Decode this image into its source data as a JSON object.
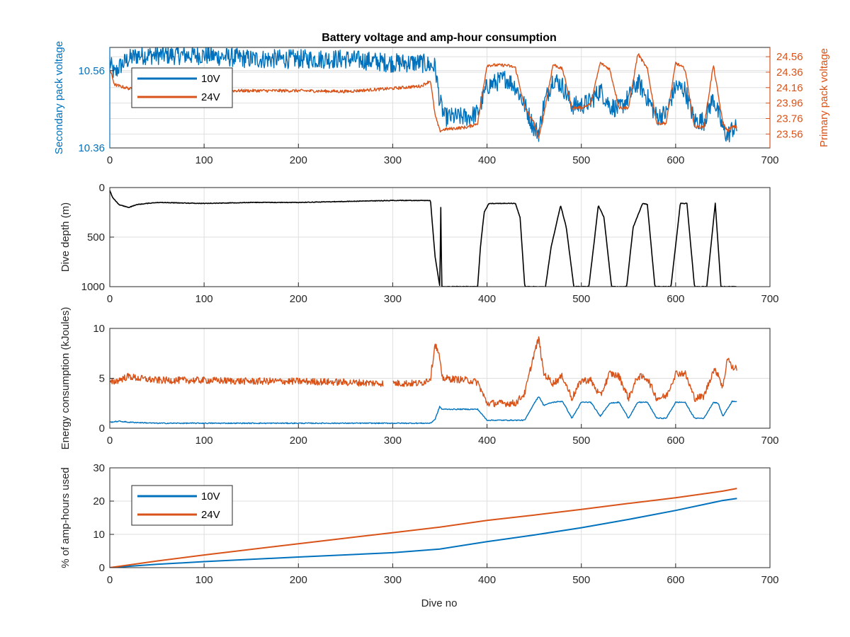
{
  "figure": {
    "title": "Battery voltage and amp-hour consumption",
    "xlabel": "Dive no",
    "colors": {
      "blue": "#0072BD",
      "orange": "#D95319",
      "black": "#000000",
      "grid": "#DFDFDF",
      "axis": "#262626"
    }
  },
  "chart_data": [
    {
      "type": "line",
      "panel": "voltage",
      "title": "Battery voltage and amp-hour consumption",
      "xlabel": "",
      "ylabel_left": "Secondary pack voltage",
      "ylabel_right": "Primary pack voltage",
      "xlim": [
        0,
        700
      ],
      "ylim_left": [
        10.36,
        10.62
      ],
      "ylim_right": [
        23.38,
        24.68
      ],
      "x_ticks": [
        0,
        100,
        200,
        300,
        400,
        500,
        600,
        700
      ],
      "y_ticks_left": [
        "10.36",
        "10.56"
      ],
      "y_ticks_right": [
        "23.56",
        "23.76",
        "23.96",
        "24.16",
        "24.36",
        "24.56"
      ],
      "legend": {
        "position": "top-left",
        "entries": [
          "10V",
          "24V"
        ]
      },
      "grid": true,
      "series": [
        {
          "name": "10V",
          "axis": "left",
          "color": "#0072BD",
          "noise": 0.025,
          "x": [
            0,
            5,
            10,
            20,
            30,
            50,
            100,
            150,
            200,
            250,
            300,
            330,
            345,
            350,
            355,
            380,
            390,
            400,
            420,
            430,
            440,
            450,
            455,
            460,
            470,
            480,
            490,
            500,
            510,
            520,
            530,
            540,
            550,
            560,
            570,
            580,
            590,
            600,
            610,
            620,
            630,
            640,
            650,
            655,
            660,
            665
          ],
          "y": [
            10.58,
            10.55,
            10.57,
            10.59,
            10.6,
            10.6,
            10.6,
            10.59,
            10.59,
            10.59,
            10.58,
            10.58,
            10.57,
            10.48,
            10.44,
            10.44,
            10.45,
            10.52,
            10.54,
            10.52,
            10.47,
            10.41,
            10.4,
            10.47,
            10.54,
            10.52,
            10.47,
            10.47,
            10.48,
            10.51,
            10.47,
            10.46,
            10.49,
            10.53,
            10.49,
            10.44,
            10.45,
            10.52,
            10.51,
            10.43,
            10.43,
            10.49,
            10.41,
            10.39,
            10.41,
            10.41
          ]
        },
        {
          "name": "24V",
          "axis": "right",
          "color": "#D95319",
          "noise": 0.02,
          "x": [
            0,
            5,
            10,
            20,
            30,
            50,
            100,
            150,
            200,
            250,
            300,
            330,
            340,
            345,
            350,
            355,
            380,
            390,
            400,
            420,
            430,
            440,
            450,
            455,
            460,
            470,
            480,
            490,
            500,
            510,
            520,
            530,
            540,
            550,
            560,
            570,
            580,
            590,
            600,
            610,
            620,
            630,
            640,
            650,
            655,
            660,
            665
          ],
          "y": [
            24.4,
            24.2,
            24.18,
            24.15,
            24.12,
            24.12,
            24.12,
            24.12,
            24.12,
            24.11,
            24.15,
            24.18,
            24.25,
            23.8,
            23.6,
            23.62,
            23.65,
            23.7,
            24.45,
            24.45,
            24.42,
            23.9,
            23.7,
            23.5,
            23.8,
            24.46,
            24.4,
            23.9,
            23.9,
            23.95,
            24.48,
            24.4,
            23.9,
            23.9,
            24.6,
            24.4,
            23.7,
            23.7,
            24.48,
            24.4,
            23.65,
            23.65,
            24.45,
            23.7,
            23.6,
            23.65,
            23.65
          ]
        }
      ]
    },
    {
      "type": "line",
      "panel": "depth",
      "xlabel": "",
      "ylabel": "Dive depth (m)",
      "xlim": [
        0,
        700
      ],
      "ylim": [
        0,
        1000
      ],
      "reversed": true,
      "x_ticks": [
        0,
        100,
        200,
        300,
        400,
        500,
        600,
        700
      ],
      "y_ticks": [
        0,
        500,
        1000
      ],
      "grid": true,
      "series": [
        {
          "color": "#000000",
          "noise": 3,
          "x": [
            0,
            3,
            10,
            20,
            30,
            50,
            100,
            150,
            200,
            250,
            300,
            340,
            345,
            350,
            351,
            352,
            353,
            355,
            360,
            380,
            390,
            393,
            397,
            402,
            430,
            435,
            440,
            442,
            455,
            462,
            468,
            478,
            484,
            492,
            500,
            508,
            513,
            518,
            524,
            532,
            542,
            548,
            555,
            565,
            570,
            578,
            587,
            595,
            605,
            612,
            620,
            627,
            633,
            642,
            648,
            656,
            665
          ],
          "y": [
            30,
            100,
            175,
            200,
            170,
            150,
            160,
            150,
            150,
            140,
            130,
            130,
            700,
            1000,
            200,
            1000,
            1000,
            1000,
            1000,
            1000,
            1000,
            600,
            250,
            160,
            160,
            300,
            1000,
            1000,
            1000,
            1000,
            600,
            180,
            400,
            1000,
            1000,
            1000,
            600,
            180,
            300,
            1000,
            1000,
            1000,
            400,
            160,
            170,
            1000,
            1000,
            1000,
            160,
            160,
            1000,
            1000,
            1000,
            160,
            1000,
            1000,
            1000
          ]
        }
      ]
    },
    {
      "type": "line",
      "panel": "energy",
      "xlabel": "",
      "ylabel": "Energy consumption (kJoules)",
      "xlim": [
        0,
        700
      ],
      "ylim": [
        0,
        10
      ],
      "x_ticks": [
        0,
        100,
        200,
        300,
        400,
        500,
        600,
        700
      ],
      "y_ticks": [
        0,
        5,
        10
      ],
      "grid": true,
      "series": [
        {
          "name": "24V",
          "color": "#D95319",
          "noise": 0.35,
          "x": [
            0,
            20,
            30,
            50,
            100,
            150,
            200,
            250,
            290,
            292,
            300,
            330,
            340,
            345,
            350,
            352,
            355,
            380,
            390,
            400,
            430,
            440,
            450,
            455,
            460,
            470,
            480,
            490,
            500,
            510,
            520,
            530,
            540,
            550,
            560,
            570,
            580,
            590,
            600,
            610,
            620,
            630,
            640,
            645,
            650,
            655,
            660,
            665
          ],
          "y": [
            4.5,
            5.2,
            5.0,
            4.8,
            4.8,
            4.7,
            4.7,
            4.6,
            4.5,
            null,
            4.5,
            4.5,
            5.0,
            8.5,
            7.0,
            5.0,
            5.0,
            4.8,
            4.6,
            2.5,
            2.5,
            3.5,
            7.5,
            9.0,
            5.5,
            4.5,
            5.2,
            3.0,
            4.8,
            4.8,
            3.2,
            5.5,
            5.2,
            3.0,
            5.2,
            5.0,
            3.0,
            3.2,
            5.5,
            5.5,
            3.0,
            3.2,
            5.8,
            5.5,
            4.0,
            7.2,
            6.0,
            6.1
          ]
        },
        {
          "name": "10V",
          "color": "#0072BD",
          "noise": 0.05,
          "x": [
            0,
            10,
            20,
            50,
            100,
            200,
            300,
            340,
            345,
            350,
            352,
            360,
            380,
            390,
            400,
            420,
            440,
            450,
            455,
            460,
            470,
            480,
            490,
            500,
            510,
            520,
            530,
            540,
            550,
            560,
            570,
            580,
            590,
            600,
            610,
            620,
            630,
            640,
            645,
            650,
            660,
            665
          ],
          "y": [
            0.6,
            0.7,
            0.6,
            0.5,
            0.5,
            0.5,
            0.5,
            0.5,
            0.9,
            2.2,
            1.9,
            1.9,
            1.9,
            1.9,
            0.8,
            0.8,
            0.8,
            2.5,
            3.2,
            2.3,
            2.6,
            2.7,
            1.0,
            2.6,
            2.6,
            1.2,
            2.5,
            2.6,
            1.0,
            2.6,
            2.6,
            1.0,
            1.0,
            2.6,
            2.6,
            1.0,
            1.0,
            2.6,
            2.5,
            1.2,
            2.7,
            2.7
          ]
        }
      ]
    },
    {
      "type": "line",
      "panel": "amphours",
      "xlabel": "Dive no",
      "ylabel": "% of amp-hours used",
      "xlim": [
        0,
        700
      ],
      "ylim": [
        0,
        30
      ],
      "x_ticks": [
        0,
        100,
        200,
        300,
        400,
        500,
        600,
        700
      ],
      "y_ticks": [
        0,
        10,
        20,
        30
      ],
      "legend": {
        "position": "top-left",
        "entries": [
          "10V",
          "24V"
        ]
      },
      "grid": true,
      "series": [
        {
          "name": "10V",
          "color": "#0072BD",
          "x": [
            0,
            50,
            100,
            200,
            300,
            350,
            400,
            450,
            500,
            550,
            600,
            650,
            665
          ],
          "y": [
            0,
            1.0,
            1.8,
            3.2,
            4.5,
            5.6,
            7.8,
            9.8,
            12.0,
            14.5,
            17.2,
            20.2,
            20.8
          ]
        },
        {
          "name": "24V",
          "color": "#D95319",
          "x": [
            0,
            50,
            100,
            200,
            300,
            350,
            400,
            450,
            500,
            550,
            600,
            650,
            665
          ],
          "y": [
            0,
            2.0,
            3.8,
            7.2,
            10.5,
            12.2,
            14.2,
            15.8,
            17.5,
            19.3,
            21.0,
            23.0,
            23.8
          ]
        }
      ]
    }
  ]
}
